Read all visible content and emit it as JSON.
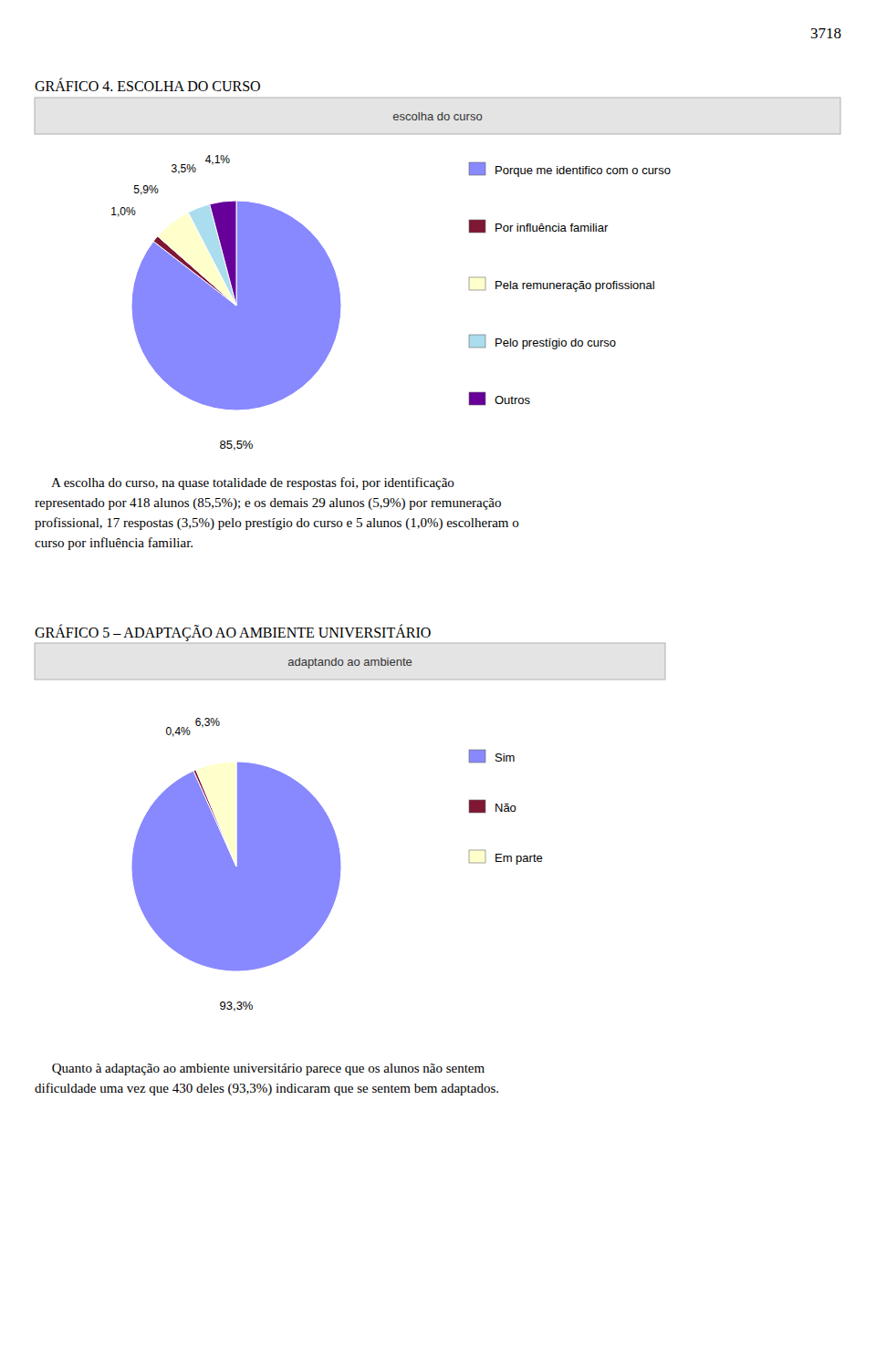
{
  "page_number": "3718",
  "chart_data": [
    {
      "type": "pie",
      "title": "GRÁFICO 4. ESCOLHA DO CURSO",
      "subtitle": "escolha do curso",
      "categories": [
        "Porque me identifico com o curso",
        "Por influência familiar",
        "Pela remuneração profissional",
        "Pelo prestígio do curso",
        "Outros"
      ],
      "values": [
        85.5,
        1.0,
        5.9,
        3.5,
        4.1
      ],
      "value_labels": [
        "85,5%",
        "1,0%",
        "5,9%",
        "3,5%",
        "4,1%"
      ],
      "colors": [
        "#8888ff",
        "#7f1734",
        "#ffffcc",
        "#aaddee",
        "#660099"
      ],
      "data_labels": true,
      "annotations": [
        "     A escolha do curso, na quase totalidade de respostas foi, por identificação",
        "representado por 418 alunos (85,5%); e os demais 29 alunos (5,9%) por remuneração",
        "profissional, 17 respostas (3,5%) pelo prestígio do curso e 5 alunos (1,0%) escolheram o",
        "curso por influência familiar."
      ]
    },
    {
      "type": "pie",
      "title": "GRÁFICO 5 – ADAPTAÇÃO AO AMBIENTE UNIVERSITÁRIO",
      "subtitle": "adaptando ao ambiente",
      "categories": [
        "Sim",
        "Não",
        "Em parte"
      ],
      "values": [
        93.3,
        0.4,
        6.3
      ],
      "value_labels": [
        "93,3%",
        "0,4%",
        "6,3%"
      ],
      "colors": [
        "#8888ff",
        "#7f1734",
        "#ffffcc"
      ],
      "data_labels": true,
      "annotations": [
        "     Quanto à adaptação ao ambiente universitário parece que os alunos não sentem",
        "dificuldade uma vez que 430 deles (93,3%) indicaram que se sentem bem adaptados."
      ]
    }
  ]
}
